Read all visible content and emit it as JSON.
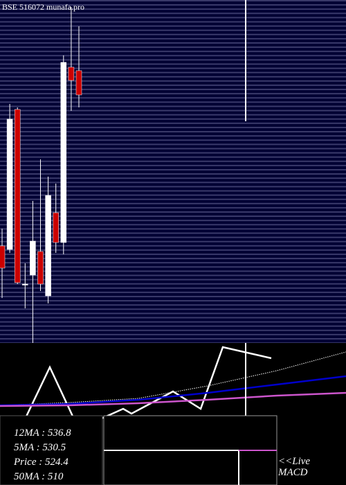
{
  "chart_data": [
    {
      "type": "candlestick",
      "title": "BSE 516072 munafa.pro",
      "up_color": "#ffffff",
      "down_color": "#cc0000",
      "ylim": [
        280,
        620
      ],
      "open": [
        376.2,
        372.7,
        511.5,
        338.4,
        347.3,
        370.7,
        326.7,
        409.1,
        379.6,
        553.4,
        550.0
      ],
      "high": [
        393.3,
        517.0,
        513.5,
        359.0,
        420.8,
        462.0,
        444.9,
        438.0,
        565.1,
        613.1,
        593.9
      ],
      "low": [
        324.6,
        369.3,
        338.4,
        314.3,
        280.0,
        331.5,
        319.2,
        369.3,
        367.9,
        510.1,
        513.5
      ],
      "close": [
        354.2,
        501.9,
        339.8,
        338.4,
        381.0,
        338.4,
        426.3,
        379.6,
        558.2,
        540.3,
        525.9
      ]
    },
    {
      "type": "line",
      "xlim": [
        0,
        500
      ],
      "ylim": [
        -10.5,
        10
      ],
      "series": [
        {
          "color": "#ffffff",
          "x": [
            0,
            37,
            72,
            108,
            140,
            178,
            190,
            250,
            290,
            322,
            392
          ],
          "values": [
            -0.8,
            -0.8,
            6.5,
            -1.2,
            -1.2,
            0.5,
            -0.2,
            3.0,
            0.5,
            9.4,
            7.8
          ]
        },
        {
          "color": "#ffffff",
          "dotted": true,
          "x": [
            0,
            100,
            200,
            300,
            400,
            500
          ],
          "values": [
            1.0,
            1.4,
            2.0,
            3.8,
            6.0,
            8.7
          ]
        },
        {
          "color": "#0000cc",
          "x": [
            0,
            100,
            200,
            300,
            400,
            500
          ],
          "values": [
            1.0,
            1.2,
            1.8,
            2.8,
            4.0,
            5.2
          ]
        },
        {
          "color": "#cc55cc",
          "x": [
            0,
            100,
            200,
            300,
            400,
            500
          ],
          "values": [
            0.9,
            1.0,
            1.3,
            1.8,
            2.4,
            2.8
          ]
        }
      ],
      "info": [
        "12MA : 536.8",
        "5MA : 530.5",
        "Price  : 524.4",
        "50MA : 510"
      ],
      "live_label": "<<Live",
      "macd_label": "MACD"
    }
  ]
}
